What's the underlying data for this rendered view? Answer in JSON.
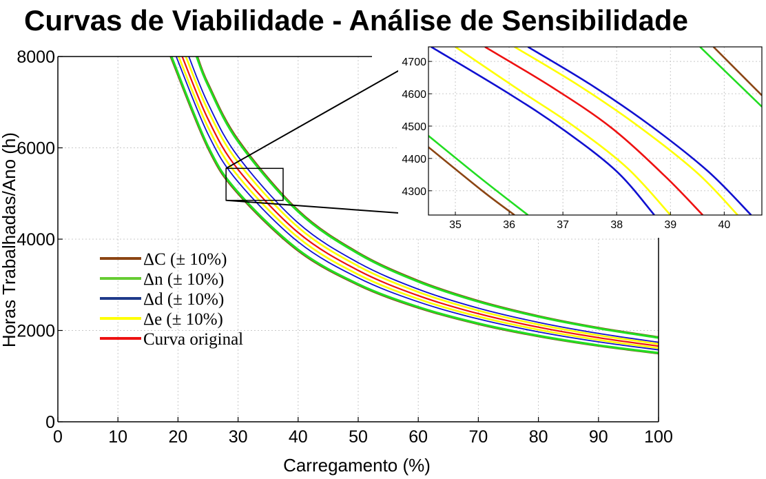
{
  "title": "Curvas de Viabilidade - Análise de Sensibilidade",
  "colors": {
    "dC": "#8b4513",
    "dn": "#22dd22",
    "dd": "#1010d0",
    "de": "#ffff00",
    "original": "#ee1111",
    "legend_dn": "#66cc33",
    "legend_dd": "#1f3a8a"
  },
  "chart_data": [
    {
      "type": "line",
      "title": "Curvas de Viabilidade - Análise de Sensibilidade",
      "xlabel": "Carregamento (%)",
      "ylabel": "Horas Trabalhadas/Ano (h)",
      "xlim": [
        0,
        100
      ],
      "ylim": [
        0,
        8000
      ],
      "xticks": [
        0,
        10,
        20,
        30,
        40,
        50,
        60,
        70,
        80,
        90,
        100
      ],
      "yticks": [
        0,
        2000,
        4000,
        6000,
        8000
      ],
      "grid": true,
      "legend_placement": "center-left",
      "legend": [
        "ΔC (± 10%)",
        "Δn (± 10%)",
        "Δd (± 10%)",
        "Δe (± 10%)",
        "Curva original"
      ],
      "series": [
        {
          "name": "Curva original",
          "color_key": "original",
          "x": [
            20.7,
            25,
            30,
            40,
            50,
            60,
            70,
            80,
            90,
            100
          ],
          "y": [
            8000,
            6630,
            5525,
            4145,
            3315,
            2763,
            2368,
            2072,
            1842,
            1658
          ]
        },
        {
          "name": "Δe (± 10%)",
          "color_key": "de",
          "x": [
            20.1,
            25,
            30,
            40,
            50,
            60,
            70,
            80,
            90,
            100
          ],
          "y": [
            8000,
            6450,
            5380,
            4035,
            3225,
            2690,
            2305,
            2017,
            1793,
            1613
          ]
        },
        {
          "name": "Δe (± 10%)",
          "color_key": "de",
          "x": [
            21.3,
            25,
            30,
            40,
            50,
            60,
            70,
            80,
            90,
            100
          ],
          "y": [
            8000,
            6820,
            5685,
            4260,
            3410,
            2842,
            2436,
            2131,
            1894,
            1705
          ]
        },
        {
          "name": "Δd (± 10%)",
          "color_key": "dd",
          "x": [
            19.7,
            25,
            30,
            40,
            50,
            60,
            70,
            80,
            90,
            100
          ],
          "y": [
            8000,
            6300,
            5255,
            3940,
            3152,
            2627,
            2252,
            1970,
            1751,
            1576
          ]
        },
        {
          "name": "Δd (± 10%)",
          "color_key": "dd",
          "x": [
            21.8,
            25,
            30,
            40,
            50,
            60,
            70,
            80,
            90,
            100
          ],
          "y": [
            8000,
            6970,
            5808,
            4355,
            3485,
            2904,
            2489,
            2178,
            1936,
            1742
          ]
        },
        {
          "name": "Δn (± 10%)",
          "color_key": "dn",
          "x": [
            18.9,
            25,
            30,
            40,
            50,
            60,
            70,
            80,
            90,
            100
          ],
          "y": [
            8000,
            6030,
            5025,
            3770,
            3015,
            2513,
            2154,
            1885,
            1675,
            1508
          ]
        },
        {
          "name": "Δn (± 10%)",
          "color_key": "dn",
          "x": [
            23.1,
            25,
            30,
            40,
            50,
            60,
            70,
            80,
            90,
            100
          ],
          "y": [
            8000,
            7370,
            6140,
            4605,
            3684,
            3070,
            2632,
            2303,
            2047,
            1842
          ]
        },
        {
          "name": "ΔC (± 10%)",
          "color_key": "dC",
          "x": [
            18.8,
            25,
            30,
            40,
            50,
            60,
            70,
            80,
            90,
            100
          ],
          "y": [
            8000,
            6000,
            5000,
            3750,
            3000,
            2500,
            2143,
            1875,
            1667,
            1500
          ]
        },
        {
          "name": "ΔC (± 10%)",
          "color_key": "dC",
          "x": [
            23.2,
            25,
            30,
            40,
            50,
            60,
            70,
            80,
            90,
            100
          ],
          "y": [
            8000,
            7400,
            6170,
            4625,
            3700,
            3085,
            2644,
            2313,
            2056,
            1850
          ]
        }
      ],
      "zoom_box": {
        "x": [
          28,
          37.5
        ],
        "y": [
          4850,
          5550
        ]
      }
    },
    {
      "type": "line",
      "title": "",
      "xlabel": "",
      "ylabel": "",
      "xlim": [
        34.5,
        40.7
      ],
      "ylim": [
        4225,
        4745
      ],
      "xticks": [
        35,
        36,
        37,
        38,
        39,
        40
      ],
      "yticks": [
        4300,
        4400,
        4500,
        4600,
        4700
      ],
      "grid": true,
      "series": [
        {
          "color_key": "dC",
          "x": [
            34.5,
            35.5,
            36.1
          ],
          "y": [
            4435,
            4300,
            4225
          ]
        },
        {
          "color_key": "dn",
          "x": [
            34.5,
            35.5,
            36.35
          ],
          "y": [
            4470,
            4335,
            4225
          ]
        },
        {
          "color_key": "dd",
          "x": [
            34.55,
            36.0,
            37.0,
            38.0,
            38.7
          ],
          "y": [
            4745,
            4600,
            4490,
            4360,
            4225
          ]
        },
        {
          "color_key": "de",
          "x": [
            35.0,
            36.2,
            37.2,
            38.2,
            39.0
          ],
          "y": [
            4745,
            4610,
            4500,
            4370,
            4225
          ]
        },
        {
          "color_key": "original",
          "x": [
            35.55,
            36.8,
            37.9,
            38.9,
            39.6
          ],
          "y": [
            4745,
            4620,
            4495,
            4345,
            4225
          ]
        },
        {
          "color_key": "de",
          "x": [
            36.1,
            37.3,
            38.4,
            39.5,
            40.25
          ],
          "y": [
            4745,
            4625,
            4500,
            4355,
            4225
          ]
        },
        {
          "color_key": "dd",
          "x": [
            36.35,
            37.5,
            38.6,
            39.7,
            40.5
          ],
          "y": [
            4745,
            4630,
            4505,
            4360,
            4225
          ]
        },
        {
          "color_key": "dn",
          "x": [
            39.55,
            40.7
          ],
          "y": [
            4745,
            4560
          ]
        },
        {
          "color_key": "dC",
          "x": [
            39.8,
            40.7
          ],
          "y": [
            4745,
            4595
          ]
        }
      ]
    }
  ],
  "legend": {
    "items": [
      {
        "label": "ΔC (± 10%)",
        "color_key": "dC"
      },
      {
        "label": "Δn (± 10%)",
        "color_key": "legend_dn"
      },
      {
        "label": "Δd (± 10%)",
        "color_key": "legend_dd"
      },
      {
        "label": "Δe (± 10%)",
        "color_key": "de"
      },
      {
        "label": "Curva original",
        "color_key": "original"
      }
    ]
  }
}
